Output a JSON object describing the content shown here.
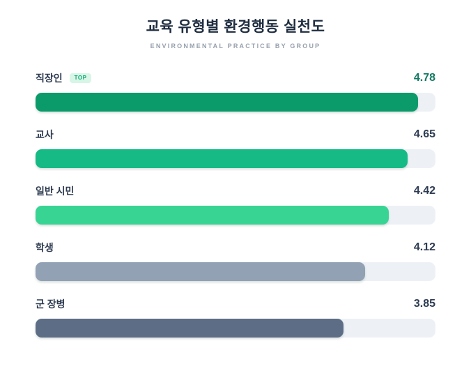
{
  "header": {
    "title": "교육 유형별 환경행동 실천도",
    "subtitle": "ENVIRONMENTAL PRACTICE BY GROUP"
  },
  "chart_data": {
    "type": "bar",
    "orientation": "horizontal",
    "title": "교육 유형별 환경행동 실천도",
    "subtitle": "ENVIRONMENTAL PRACTICE BY GROUP",
    "categories": [
      "직장인",
      "교사",
      "일반 시민",
      "학생",
      "군 장병"
    ],
    "values": [
      4.78,
      4.65,
      4.42,
      4.12,
      3.85
    ],
    "value_max": 5,
    "grid": false,
    "legend": false,
    "annotations": [
      {
        "category": "직장인",
        "badge": "TOP"
      }
    ],
    "bar_colors": [
      "#0b9b6b",
      "#15ba85",
      "#38d494",
      "#92a1b4",
      "#5d6d86"
    ],
    "track_color": "#edf1f6"
  },
  "rows": [
    {
      "label": "직장인",
      "badge": "TOP",
      "value": "4.78",
      "width": "95.6%",
      "color": "#0b9b6b"
    },
    {
      "label": "교사",
      "value": "4.65",
      "width": "93%",
      "color": "#15ba85"
    },
    {
      "label": "일반 시민",
      "value": "4.42",
      "width": "88.4%",
      "color": "#38d494"
    },
    {
      "label": "학생",
      "value": "4.12",
      "width": "82.4%",
      "color": "#92a1b4"
    },
    {
      "label": "군 장병",
      "value": "3.85",
      "width": "77%",
      "color": "#5d6d86"
    }
  ],
  "colors": {
    "title": "#1f2d40",
    "subtitle": "#97a0ad",
    "label": "#2d3a4f",
    "value": "#2d3b52",
    "value_top": "#117a63",
    "badge_bg": "#d7f6e7",
    "badge_text": "#16a878",
    "track": "#edf1f6"
  }
}
